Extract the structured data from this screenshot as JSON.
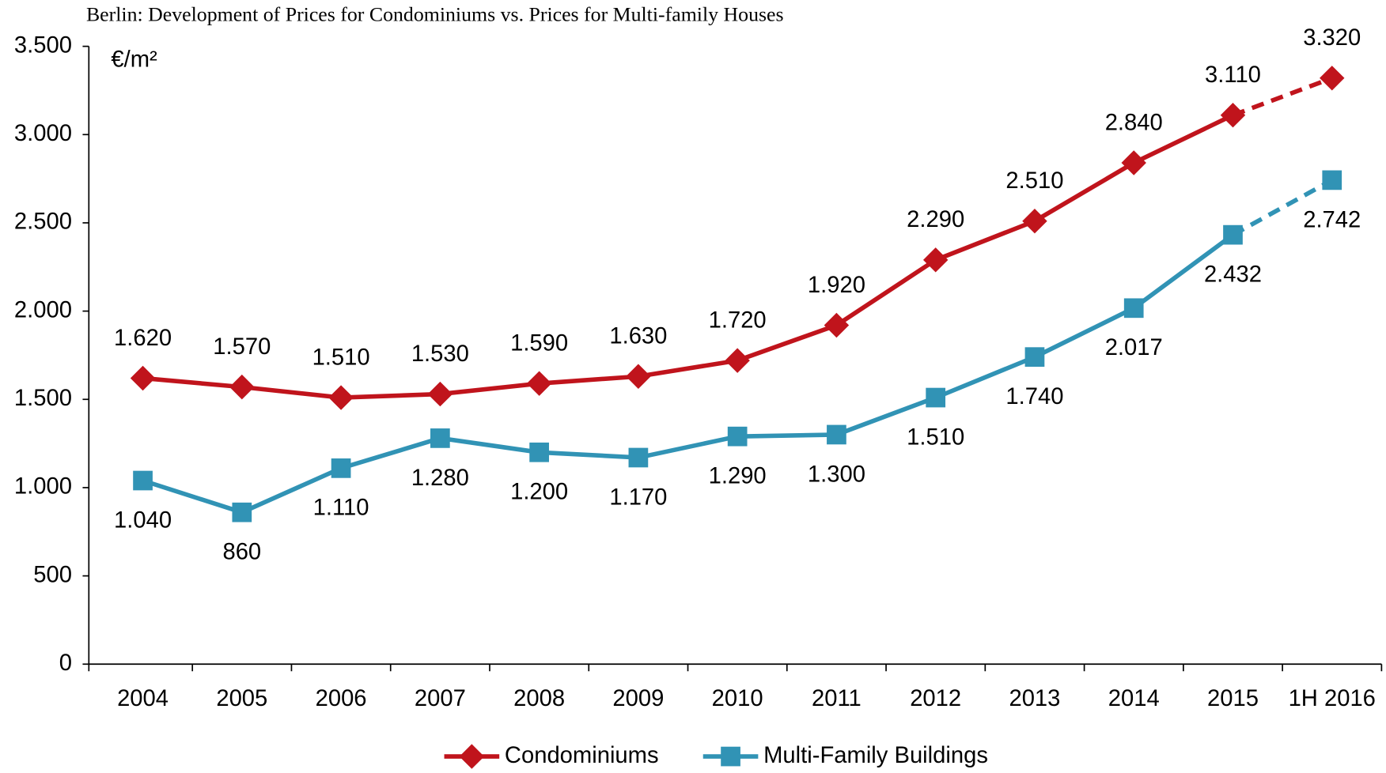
{
  "chart_data": {
    "type": "line",
    "title": "Berlin:  Development of Prices for Condominiums vs. Prices for Multi-family  Houses",
    "unit_label": "€/m²",
    "categories": [
      "2004",
      "2005",
      "2006",
      "2007",
      "2008",
      "2009",
      "2010",
      "2011",
      "2012",
      "2013",
      "2014",
      "2015",
      "1H 2016"
    ],
    "series": [
      {
        "name": "Condominiums",
        "color": "#c0141c",
        "marker": "diamond",
        "label_position": "above",
        "dashed_last_segment": true,
        "values": [
          1620,
          1570,
          1510,
          1530,
          1590,
          1630,
          1720,
          1920,
          2290,
          2510,
          2840,
          3110,
          3320
        ],
        "value_labels": [
          "1.620",
          "1.570",
          "1.510",
          "1.530",
          "1.590",
          "1.630",
          "1.720",
          "1.920",
          "2.290",
          "2.510",
          "2.840",
          "3.110",
          "3.320"
        ]
      },
      {
        "name": "Multi-Family Buildings",
        "color": "#3193b5",
        "marker": "square",
        "label_position": "below",
        "dashed_last_segment": true,
        "values": [
          1040,
          860,
          1110,
          1280,
          1200,
          1170,
          1290,
          1300,
          1510,
          1740,
          2017,
          2432,
          2742
        ],
        "value_labels": [
          "1.040",
          "860",
          "1.110",
          "1.280",
          "1.200",
          "1.170",
          "1.290",
          "1.300",
          "1.510",
          "1.740",
          "2.017",
          "2.432",
          "2.742"
        ]
      }
    ],
    "ylim": [
      0,
      3500
    ],
    "yticks": [
      0,
      500,
      {
        "value": 1000,
        "label": "1.000"
      },
      {
        "value": 1500,
        "label": "1.500"
      },
      {
        "value": 2000,
        "label": "2.000"
      },
      {
        "value": 2500,
        "label": "2.500"
      },
      {
        "value": 3000,
        "label": "3.000"
      },
      {
        "value": 3500,
        "label": "3.500"
      }
    ],
    "grid": false,
    "legend": "bottom"
  }
}
